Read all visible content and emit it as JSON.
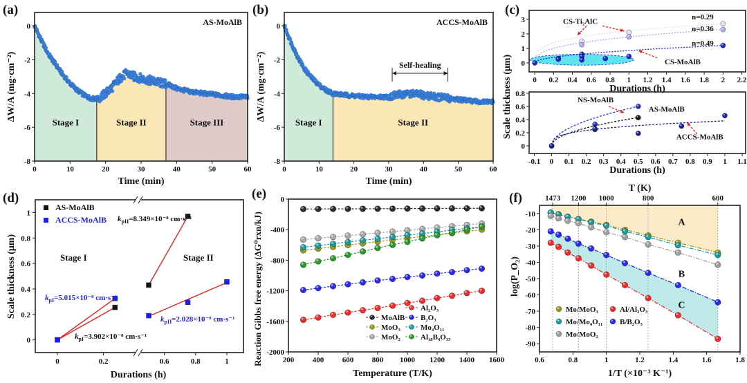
{
  "colors": {
    "dots": "#3f82dc",
    "stage1": "#cfead8",
    "stage2": "#fbe6b6",
    "stage3": "#dfcaca",
    "highlight": "#5fe3f0",
    "regionA": "#fbebc8",
    "regionC": "#bfeaea",
    "arrow": "#e02020"
  },
  "chart_data": [
    {
      "panel": "(a)",
      "type": "scatter",
      "label": "AS-MoAlB",
      "xlabel": "Time (min)",
      "ylabel": "ΔW/A (mg·cm⁻²)",
      "xlim": [
        0,
        60
      ],
      "ylim": [
        -8,
        0.8
      ],
      "xticks": [
        0,
        10,
        20,
        30,
        40,
        50,
        60
      ],
      "yticks": [
        0,
        -2,
        -4,
        -6,
        -8
      ],
      "stages": [
        {
          "name": "Stage I",
          "from": 0,
          "to": 17.5
        },
        {
          "name": "Stage II",
          "from": 17.5,
          "to": 37
        },
        {
          "name": "Stage III",
          "from": 37,
          "to": 60
        }
      ],
      "curve": {
        "t": [
          0,
          2,
          4,
          6,
          8,
          10,
          12,
          14,
          16,
          18,
          20,
          22,
          24,
          26,
          28,
          30,
          32,
          34,
          36,
          38,
          40,
          44,
          48,
          52,
          56,
          60
        ],
        "y": [
          0,
          -0.9,
          -1.7,
          -2.3,
          -2.9,
          -3.4,
          -3.8,
          -4.1,
          -4.3,
          -4.3,
          -4.0,
          -3.6,
          -3.1,
          -2.8,
          -3.0,
          -3.1,
          -3.2,
          -3.3,
          -3.4,
          -3.5,
          -3.7,
          -3.9,
          -4.0,
          -4.1,
          -4.2,
          -4.2
        ]
      }
    },
    {
      "panel": "(b)",
      "type": "scatter",
      "label": "ACCS-MoAlB",
      "xlabel": "Time (min)",
      "ylabel": "ΔW/A (mg·cm⁻²)",
      "xlim": [
        0,
        60
      ],
      "ylim": [
        -8,
        0.8
      ],
      "xticks": [
        0,
        10,
        20,
        30,
        40,
        50,
        60
      ],
      "yticks": [
        0,
        -2,
        -4,
        -6,
        -8
      ],
      "stages": [
        {
          "name": "Stage I",
          "from": 0,
          "to": 14
        },
        {
          "name": "Stage II",
          "from": 14,
          "to": 60
        }
      ],
      "annotation": {
        "text": "Self-healing",
        "from": 31,
        "to": 47,
        "y": -2.8
      },
      "curve": {
        "t": [
          0,
          2,
          4,
          6,
          8,
          10,
          12,
          14,
          18,
          24,
          30,
          32,
          36,
          40,
          44,
          48,
          52,
          56,
          60
        ],
        "y": [
          0,
          -1.0,
          -1.9,
          -2.6,
          -3.1,
          -3.5,
          -3.8,
          -4.0,
          -4.1,
          -4.2,
          -4.2,
          -4.1,
          -4.0,
          -4.1,
          -4.2,
          -4.3,
          -4.4,
          -4.5,
          -4.5
        ]
      }
    },
    {
      "panel": "(c)",
      "type": "scatter",
      "subplot": "top",
      "xlabel": "Durations (h)",
      "ylabel": "Scale thickness (μm)",
      "xlim": [
        -0.06,
        2.24
      ],
      "ylim": [
        -0.62,
        3.62
      ],
      "xticks": [
        0.0,
        0.2,
        0.4,
        0.6,
        0.8,
        1.0,
        1.2,
        1.4,
        1.6,
        1.8,
        2.0,
        2.2
      ],
      "yticks": [
        0.0,
        1.0,
        2.0,
        3.0
      ],
      "series": [
        {
          "name": "CS-Ti2AlC",
          "n": "n=0.29",
          "color": "#dcdcf4",
          "x": [
            0.5,
            1.0,
            2.0
          ],
          "y": [
            1.5,
            2.1,
            2.7
          ]
        },
        {
          "name": "CS-Ti2AlC",
          "n": "n=0.36",
          "color": "#a9a9ee",
          "x": [
            0.5,
            1.0,
            2.0
          ],
          "y": [
            1.25,
            1.8,
            2.3
          ]
        },
        {
          "name": "CS-MoAlB",
          "n": "n=0.49",
          "color": "#1c22c8",
          "x": [
            0,
            0.25,
            0.25,
            0.5,
            0.5,
            0.5,
            0.75,
            1.0,
            2.0
          ],
          "y": [
            0,
            0.3,
            0.25,
            0.6,
            0.45,
            0.2,
            0.3,
            0.45,
            1.2
          ]
        }
      ],
      "labels": {
        "ti2alc": "CS-Ti₂AlC",
        "moalb": "CS-MoAlB"
      }
    },
    {
      "panel": "(c)",
      "type": "scatter",
      "subplot": "bottom",
      "xlabel": "Durations (h)",
      "ylabel": "Scale thickness (μm)",
      "xlim": [
        -0.13,
        1.12
      ],
      "ylim": [
        -0.116,
        0.82
      ],
      "xticks": [
        -0.1,
        0.0,
        0.1,
        0.2,
        0.3,
        0.4,
        0.5,
        0.6,
        0.7,
        0.8,
        0.9,
        1.0,
        1.1
      ],
      "yticks": [
        0.0,
        0.2,
        0.4,
        0.6,
        0.8
      ],
      "series": [
        {
          "name": "NS-MoAlB",
          "color": "#2a33cc",
          "x": [
            0,
            0.25,
            0.5
          ],
          "y": [
            0,
            0.33,
            0.6
          ]
        },
        {
          "name": "AS-MoAlB",
          "color": "#111111",
          "x": [
            0,
            0.25,
            0.5
          ],
          "y": [
            0,
            0.25,
            0.43
          ]
        },
        {
          "name": "ACCS-MoAlB",
          "color": "#1c2299",
          "x": [
            0,
            0.25,
            0.5,
            0.75,
            1.0
          ],
          "y": [
            0,
            0.26,
            0.19,
            0.3,
            0.46
          ]
        }
      ]
    },
    {
      "panel": "(d)",
      "type": "line",
      "xlabel": "Durations (h)",
      "ylabel": "Scale thickness (μm)",
      "ylim": [
        -0.1,
        1.1
      ],
      "xticks": [
        0.0,
        0.2,
        0.6,
        0.8,
        1.0
      ],
      "yticks": [
        0.0,
        0.2,
        0.4,
        0.6,
        0.8,
        1.0
      ],
      "x_break": true,
      "series": [
        {
          "name": "AS-MoAlB",
          "color": "#111111",
          "x": [
            0,
            0.25,
            0.5,
            0.75
          ],
          "y": [
            0,
            0.255,
            0.43,
            0.97
          ]
        },
        {
          "name": "ACCS-MoAlB",
          "color": "#1a1aff",
          "x": [
            0,
            0.25,
            0.5,
            0.75,
            1.0
          ],
          "y": [
            0,
            0.325,
            0.19,
            0.295,
            0.455
          ]
        }
      ],
      "fits": [
        {
          "x": [
            0,
            0.25
          ],
          "y": [
            0,
            0.255
          ]
        },
        {
          "x": [
            0,
            0.25
          ],
          "y": [
            0,
            0.325
          ]
        },
        {
          "x": [
            0.5,
            0.75
          ],
          "y": [
            0.43,
            0.97
          ]
        },
        {
          "x": [
            0.5,
            1.0
          ],
          "y": [
            0.185,
            0.45
          ]
        }
      ],
      "stage_labels": [
        "Stage I",
        "Stage II"
      ],
      "rates": [
        {
          "k": "k",
          "sub": "pI",
          "rest": "=3.902×10⁻⁸ cm·s⁻¹",
          "color": "#111111"
        },
        {
          "k": "k",
          "sub": "pI",
          "rest": "=5.015×10⁻⁸ cm·s⁻¹",
          "color": "#2323e0"
        },
        {
          "k": "k",
          "sub": "pII",
          "rest": "=8.349×10⁻⁸ cm·s⁻¹",
          "color": "#111111"
        },
        {
          "k": "k",
          "sub": "pII",
          "rest": "=2.028×10⁻⁸ cm·s⁻¹",
          "color": "#2323e0"
        }
      ]
    },
    {
      "panel": "(e)",
      "type": "line",
      "xlabel": "Temperature (T/K)",
      "ylabel": "Reaction Gibbs free energy (ΔG⁰rxn/kJ)",
      "xlim": [
        200,
        1600
      ],
      "ylim": [
        -2000,
        0
      ],
      "xticks": [
        200,
        400,
        600,
        800,
        1000,
        1200,
        1400,
        1600
      ],
      "yticks": [
        0,
        -400,
        -800,
        -1200,
        -1600,
        -2000
      ],
      "x": [
        300,
        400,
        500,
        600,
        700,
        800,
        900,
        1000,
        1100,
        1200,
        1300,
        1400,
        1500
      ],
      "series": [
        {
          "name": "MoAlB",
          "color": "#2b2b2b",
          "y": [
            -130,
            -129,
            -128,
            -128,
            -127,
            -126,
            -125,
            -124,
            -123,
            -122,
            -121,
            -120,
            -120
          ]
        },
        {
          "name": "MoO₃",
          "color": "#9a9a1e",
          "y": [
            -670,
            -648,
            -625,
            -602,
            -580,
            -558,
            -535,
            -512,
            -490,
            -468,
            -445,
            -422,
            -400
          ]
        },
        {
          "name": "MoO₂",
          "color": "#a8a8a8",
          "y": [
            -530,
            -512,
            -495,
            -478,
            -460,
            -442,
            -425,
            -408,
            -390,
            -372,
            -355,
            -338,
            -320
          ]
        },
        {
          "name": "Al₂O₃",
          "color": "#ee2a2a",
          "y": [
            -1580,
            -1550,
            -1515,
            -1485,
            -1455,
            -1425,
            -1395,
            -1360,
            -1330,
            -1295,
            -1265,
            -1230,
            -1200
          ]
        },
        {
          "name": "B₂O₃",
          "color": "#2a2aee",
          "y": [
            -1190,
            -1165,
            -1140,
            -1115,
            -1090,
            -1065,
            -1045,
            -1020,
            -1000,
            -975,
            -955,
            -930,
            -910
          ]
        },
        {
          "name": "Mo₄O₁₁",
          "color": "#1e9a9a",
          "y": [
            -630,
            -608,
            -585,
            -562,
            -540,
            -518,
            -495,
            -472,
            -450,
            -428,
            -405,
            -382,
            -360
          ]
        },
        {
          "name": "Al₁₈B₄O₃₃",
          "color": "#2a9a2a",
          "y": [
            -860,
            -815,
            -775,
            -730,
            -685,
            -640,
            -600,
            -560,
            -515,
            -472,
            -440,
            -400,
            -360
          ]
        }
      ]
    },
    {
      "panel": "(f)",
      "type": "line",
      "xlabel": "1/T (×10⁻³ K⁻¹)",
      "ylabel": "log(P_O₂)",
      "top_xlabel": "T (K)",
      "xlim": [
        0.6,
        1.8
      ],
      "ylim": [
        -95,
        -5
      ],
      "xticks": [
        0.6,
        0.8,
        1.0,
        1.2,
        1.4,
        1.6,
        1.8
      ],
      "yticks": [
        -10,
        -20,
        -30,
        -40,
        -50,
        -60,
        -70,
        -80,
        -90
      ],
      "top_ticks": [
        1473,
        1200,
        1000,
        800,
        600
      ],
      "x": [
        0.667,
        0.714,
        0.769,
        0.833,
        0.909,
        1.0,
        1.111,
        1.25,
        1.429,
        1.667
      ],
      "series": [
        {
          "name": "Mo/MoO₃",
          "color": "#9a9a1e",
          "y": [
            -9.5,
            -10.5,
            -12,
            -13.5,
            -15,
            -17,
            -20,
            -23.5,
            -28,
            -34
          ]
        },
        {
          "name": "Mo/Mo₄O₁₁",
          "color": "#1e9a9a",
          "y": [
            -9.5,
            -10.5,
            -12,
            -13.5,
            -15.5,
            -17.5,
            -21,
            -24.5,
            -29.5,
            -35.5
          ]
        },
        {
          "name": "Mo/MoO₂",
          "color": "#a0a0a0",
          "y": [
            -11.5,
            -13,
            -14.5,
            -16,
            -18.5,
            -21.5,
            -24.5,
            -29,
            -34,
            -41.5
          ]
        },
        {
          "name": "Al/Al₂O₃",
          "color": "#ee2a2a",
          "y": [
            -28,
            -30.5,
            -34,
            -37.5,
            -42,
            -47.5,
            -54,
            -62,
            -72.5,
            -87
          ]
        },
        {
          "name": "B/B₂O₃",
          "color": "#2a2aee",
          "y": [
            -21,
            -23,
            -25.5,
            -28.5,
            -31.5,
            -35.5,
            -40.5,
            -46.5,
            -54,
            -64.5
          ]
        }
      ],
      "regions": [
        "A",
        "B",
        "C"
      ]
    }
  ]
}
